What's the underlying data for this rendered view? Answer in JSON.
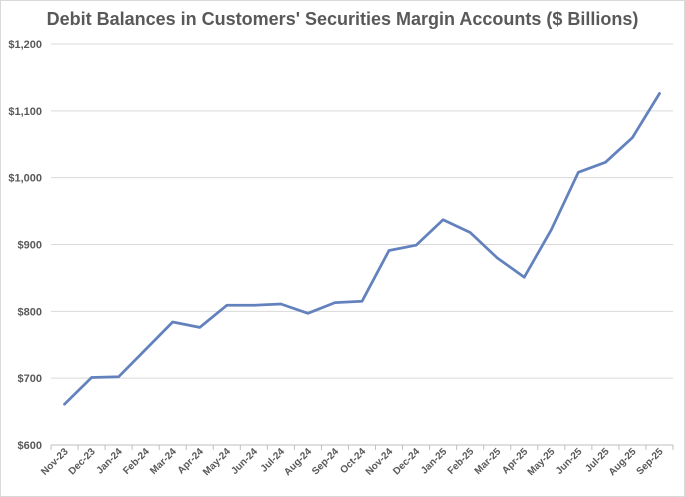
{
  "chart_data": {
    "type": "line",
    "title": "Debit Balances in Customers' Securities Margin Accounts ($ Billions)",
    "xlabel": "",
    "ylabel": "",
    "ylim": [
      600,
      1200
    ],
    "y_ticks": [
      600,
      700,
      800,
      900,
      1000,
      1100,
      1200
    ],
    "y_tick_labels": [
      "$600",
      "$700",
      "$800",
      "$900",
      "$1,000",
      "$1,100",
      "$1,200"
    ],
    "grid": true,
    "legend": "none",
    "line_color": "#6382bd",
    "categories": [
      "Nov-23",
      "Dec-23",
      "Jan-24",
      "Feb-24",
      "Mar-24",
      "Apr-24",
      "May-24",
      "Jun-24",
      "Jul-24",
      "Aug-24",
      "Sep-24",
      "Oct-24",
      "Nov-24",
      "Dec-24",
      "Jan-25",
      "Feb-25",
      "Mar-25",
      "Apr-25",
      "May-25",
      "Jun-25",
      "Jul-25",
      "Aug-25",
      "Sep-25"
    ],
    "series": [
      {
        "values": [
          661,
          701,
          702,
          743,
          784,
          776,
          809,
          809,
          811,
          797,
          813,
          815,
          891,
          899,
          937,
          918,
          880,
          851,
          922,
          1008,
          1023,
          1060,
          1126
        ]
      }
    ]
  }
}
